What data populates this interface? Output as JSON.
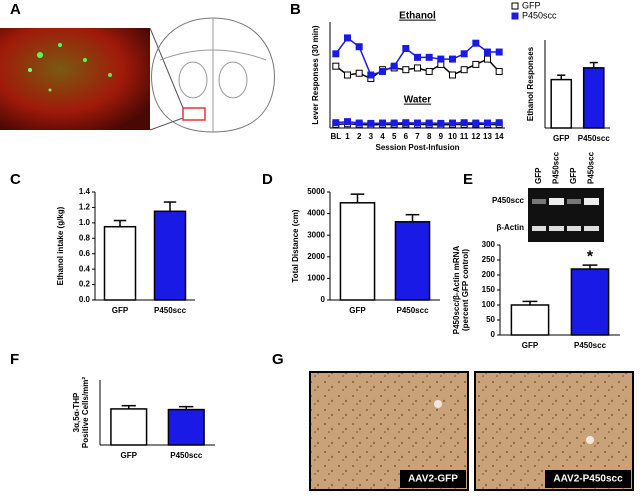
{
  "chart_data": [
    {
      "type": "line",
      "panel": "B",
      "x_label": "Session Post-Infusion",
      "y_label": "Lever Responses (30 min)",
      "annotations": [
        "Ethanol",
        "Water"
      ],
      "categories": [
        "BL",
        "1",
        "2",
        "3",
        "4",
        "5",
        "6",
        "7",
        "8",
        "9",
        "10",
        "11",
        "12",
        "13",
        "14"
      ],
      "ylim": [
        0,
        300
      ],
      "series": [
        {
          "name": "GFP",
          "color": "#ffffff",
          "line_color": "#000000",
          "values": [
            175,
            150,
            155,
            140,
            165,
            170,
            165,
            170,
            160,
            180,
            150,
            165,
            180,
            195,
            160
          ],
          "water": [
            10,
            12,
            10,
            9,
            10,
            10,
            11,
            10,
            10,
            9,
            10,
            10,
            11,
            10,
            10
          ]
        },
        {
          "name": "P450scc",
          "color": "#1a1ae6",
          "line_color": "#1a1ae6",
          "values": [
            210,
            255,
            230,
            150,
            160,
            175,
            225,
            200,
            200,
            195,
            195,
            210,
            240,
            215,
            215
          ],
          "water": [
            15,
            18,
            14,
            13,
            14,
            14,
            15,
            14,
            14,
            13,
            14,
            15,
            14,
            14,
            15
          ]
        }
      ]
    },
    {
      "type": "bar",
      "y_label": "Ethanol Responses",
      "categories": [
        "GFP",
        "P450scc"
      ],
      "values": [
        165,
        205
      ],
      "errors": [
        15,
        18
      ],
      "colors": [
        "#ffffff",
        "#1a1ae6"
      ],
      "ylim": [
        0,
        300
      ]
    },
    {
      "type": "bar",
      "panel": "C",
      "y_label": "Ethanol intake (g/kg)",
      "categories": [
        "GFP",
        "P450scc"
      ],
      "values": [
        0.95,
        1.15
      ],
      "errors": [
        0.08,
        0.12
      ],
      "colors": [
        "#ffffff",
        "#1a1ae6"
      ],
      "ylim": [
        0,
        1.4
      ],
      "yticks": [
        {
          "value": 0,
          "label": "0.0"
        },
        0.2,
        0.4,
        0.6,
        0.8,
        {
          "value": 1,
          "label": "1.0"
        },
        1.2,
        1.4
      ]
    },
    {
      "type": "bar",
      "panel": "D",
      "y_label": "Total Distance (cm)",
      "categories": [
        "GFP",
        "P450scc"
      ],
      "values": [
        4500,
        3620
      ],
      "errors": [
        400,
        330
      ],
      "colors": [
        "#ffffff",
        "#1a1ae6"
      ],
      "ylim": [
        0,
        5000
      ],
      "yticks": [
        0,
        1000,
        2000,
        3000,
        4000,
        5000
      ]
    },
    {
      "type": "bar",
      "panel": "E",
      "y_label": [
        "P450scc/β-Actin mRNA",
        "(percent GFP control)"
      ],
      "categories": [
        "GFP",
        "P450scc"
      ],
      "values": [
        100,
        220
      ],
      "errors": [
        12,
        13
      ],
      "colors": [
        "#ffffff",
        "#1a1ae6"
      ],
      "ylim": [
        0,
        300
      ],
      "yticks": [
        0,
        50,
        100,
        150,
        200,
        250,
        300
      ],
      "annotation": "*"
    },
    {
      "type": "bar",
      "panel": "F",
      "y_label": [
        "3α,5α-THP",
        "Positive Cells/mm²"
      ],
      "categories": [
        "GFP",
        "P450scc"
      ],
      "values": [
        1110,
        1090
      ],
      "errors": [
        100,
        90
      ],
      "colors": [
        "#ffffff",
        "#1a1ae6"
      ],
      "ylim": [
        0,
        2000
      ]
    }
  ],
  "images": [
    {
      "panel": "A"
    },
    {
      "panel": "G",
      "captions": [
        "AAV2-GFP",
        "AAV2-P450scc"
      ]
    }
  ],
  "gel": {
    "lanes": [
      "GFP",
      "P450scc",
      "GFP",
      "P450scc"
    ],
    "rows": [
      "P450scc",
      "β-Actin"
    ]
  }
}
